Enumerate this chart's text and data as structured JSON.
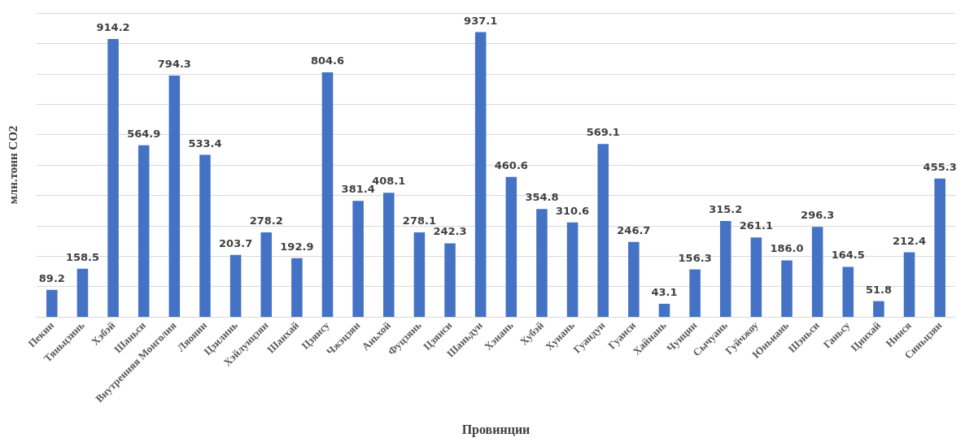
{
  "chart_data": {
    "type": "bar",
    "xlabel": "Провинции",
    "ylabel": "млн.тонн CO2",
    "categories": [
      "Пекин",
      "Тяньцзинь",
      "Хэбэй",
      "Шаньси",
      "Внутренняя Монголия",
      "Ляонин",
      "Цзилинь",
      "Хэйлунцзян",
      "Шанхай",
      "Цзянсу",
      "Чжэцзян",
      "Аньхой",
      "Фуцзянь",
      "Цзянси",
      "Шаньдун",
      "Хэнань",
      "Хубэй",
      "Хунань",
      "Гуандун",
      "Гуанси",
      "Хайнань",
      "Чунцин",
      "Сычуань",
      "Гуйчжоу",
      "Юньнань",
      "Шэньси",
      "Ганьсу",
      "Цинхай",
      "Нинся",
      "Синьцзян"
    ],
    "values": [
      89.2,
      158.5,
      914.2,
      564.9,
      794.3,
      533.4,
      203.7,
      278.2,
      192.9,
      804.6,
      381.4,
      408.1,
      278.1,
      242.3,
      937.1,
      460.6,
      354.8,
      310.6,
      569.1,
      246.7,
      43.1,
      156.3,
      315.2,
      261.1,
      186.0,
      296.3,
      164.5,
      51.8,
      212.4,
      455.3
    ],
    "value_labels": [
      "89.2",
      "158.5",
      "914.2",
      "564.9",
      "794.3",
      "533.4",
      "203.7",
      "278.2",
      "192.9",
      "804.6",
      "381.4",
      "408.1",
      "278.1",
      "242.3",
      "937.1",
      "460.6",
      "354.8",
      "310.6",
      "569.1",
      "246.7",
      "43.1",
      "156.3",
      "315.2",
      "261.1",
      "186.0",
      "296.3",
      "164.5",
      "51.8",
      "212.4",
      "455.3"
    ],
    "color": "#4472c4",
    "ylim": [
      0,
      1000
    ],
    "yticks": [
      {
        "value": 0,
        "label": null
      },
      {
        "value": 100,
        "label": null
      },
      {
        "value": 200,
        "label": null
      },
      {
        "value": 300,
        "label": null
      },
      {
        "value": 400,
        "label": null
      },
      {
        "value": 500,
        "label": null
      },
      {
        "value": 600,
        "label": null
      },
      {
        "value": 700,
        "label": null
      },
      {
        "value": 800,
        "label": null
      },
      {
        "value": 900,
        "label": null
      },
      {
        "value": 1000,
        "label": null
      }
    ],
    "tick_labels": "x",
    "grid": "y"
  }
}
